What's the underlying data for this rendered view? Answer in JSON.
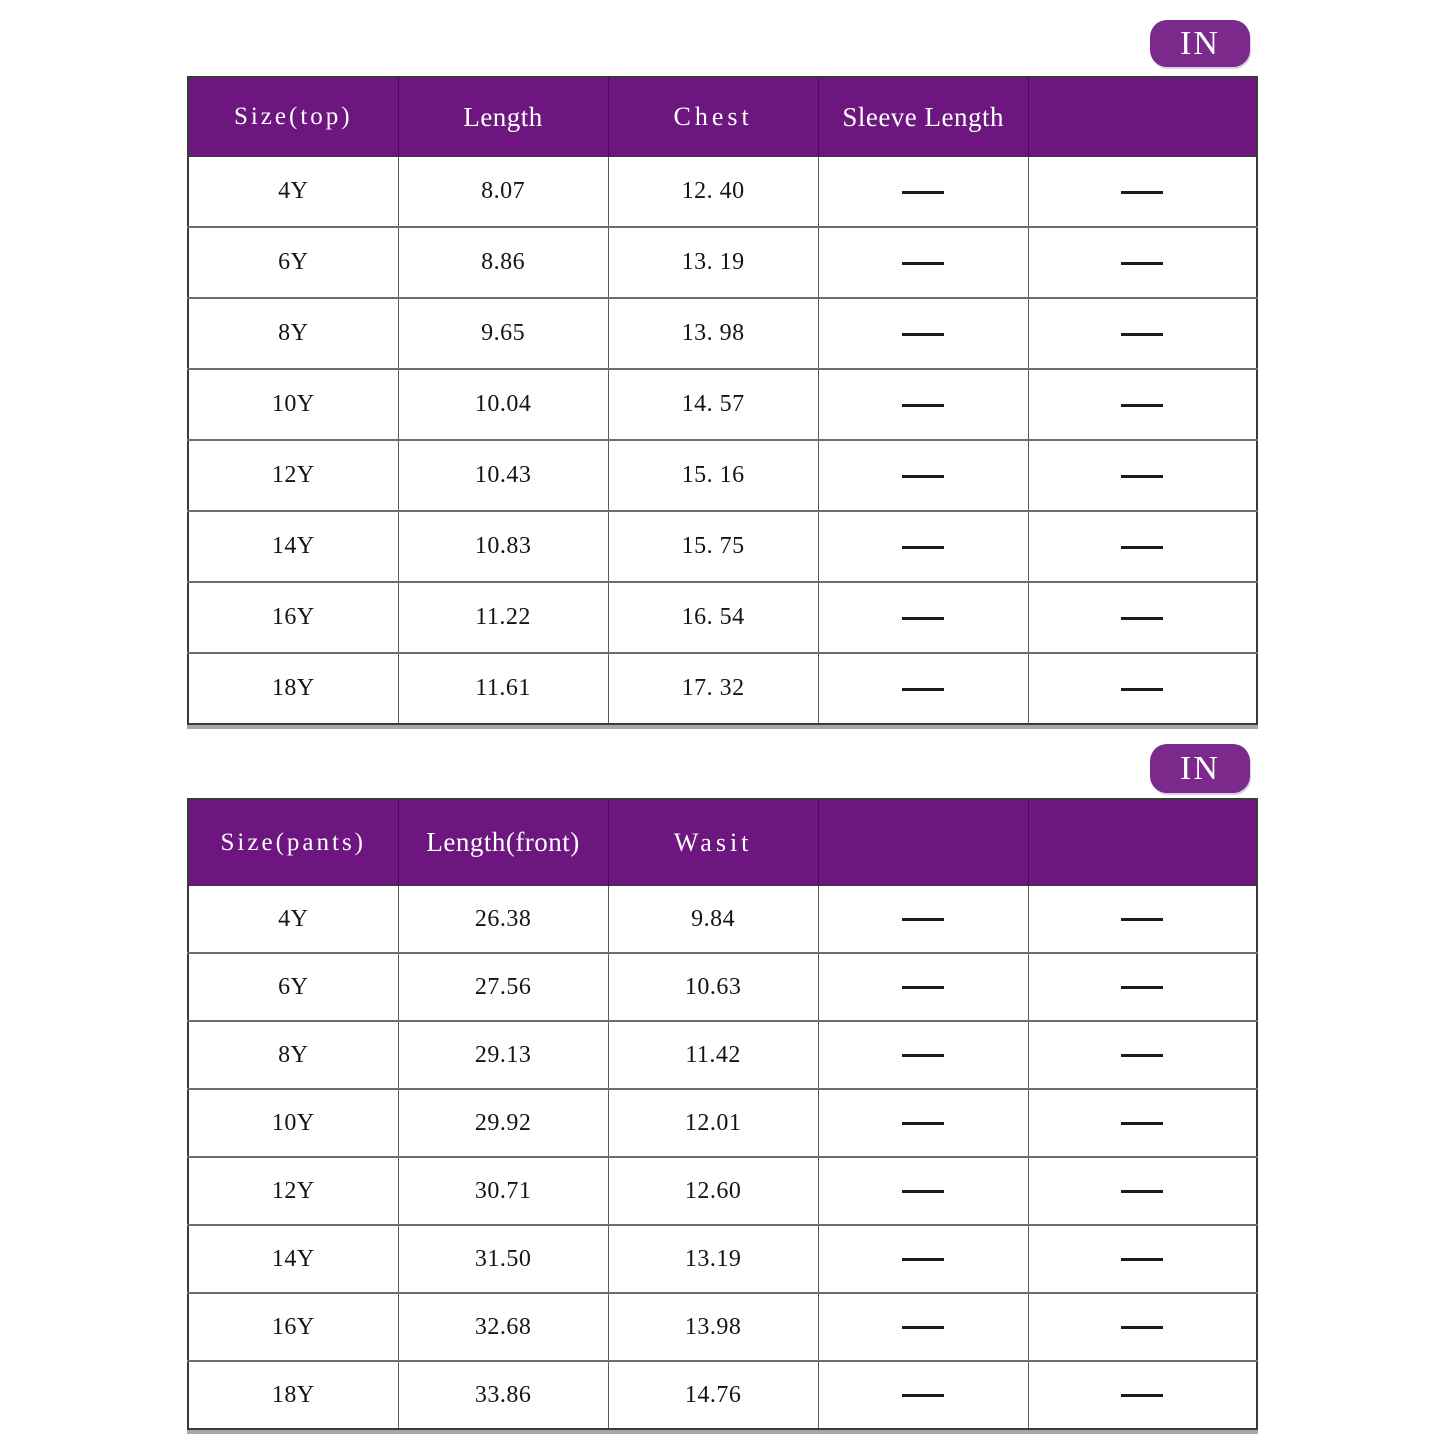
{
  "badge_label": "IN",
  "colors": {
    "header_purple": "#6D1680",
    "badge_purple": "#7B2A8C",
    "grid_line": "#5a5a5a",
    "text": "#141414",
    "background": "#ffffff"
  },
  "chart_data": [
    {
      "type": "table",
      "unit_badge": "IN",
      "columns": [
        "Size(top)",
        "Length",
        "Chest",
        "Sleeve Length",
        ""
      ],
      "rows": [
        [
          "4Y",
          "8.07",
          "12. 40",
          "—",
          "—"
        ],
        [
          "6Y",
          "8.86",
          "13. 19",
          "—",
          "—"
        ],
        [
          "8Y",
          "9.65",
          "13. 98",
          "—",
          "—"
        ],
        [
          "10Y",
          "10.04",
          "14. 57",
          "—",
          "—"
        ],
        [
          "12Y",
          "10.43",
          "15. 16",
          "—",
          "—"
        ],
        [
          "14Y",
          "10.83",
          "15. 75",
          "—",
          "—"
        ],
        [
          "16Y",
          "11.22",
          "16. 54",
          "—",
          "—"
        ],
        [
          "18Y",
          "11.61",
          "17. 32",
          "—",
          "—"
        ]
      ]
    },
    {
      "type": "table",
      "unit_badge": "IN",
      "columns": [
        "Size(pants)",
        "Length(front)",
        "Wasit",
        "",
        ""
      ],
      "rows": [
        [
          "4Y",
          "26.38",
          "9.84",
          "—",
          "—"
        ],
        [
          "6Y",
          "27.56",
          "10.63",
          "—",
          "—"
        ],
        [
          "8Y",
          "29.13",
          "11.42",
          "—",
          "—"
        ],
        [
          "10Y",
          "29.92",
          "12.01",
          "—",
          "—"
        ],
        [
          "12Y",
          "30.71",
          "12.60",
          "—",
          "—"
        ],
        [
          "14Y",
          "31.50",
          "13.19",
          "—",
          "—"
        ],
        [
          "16Y",
          "32.68",
          "13.98",
          "—",
          "—"
        ],
        [
          "18Y",
          "33.86",
          "14.76",
          "—",
          "—"
        ]
      ]
    }
  ]
}
